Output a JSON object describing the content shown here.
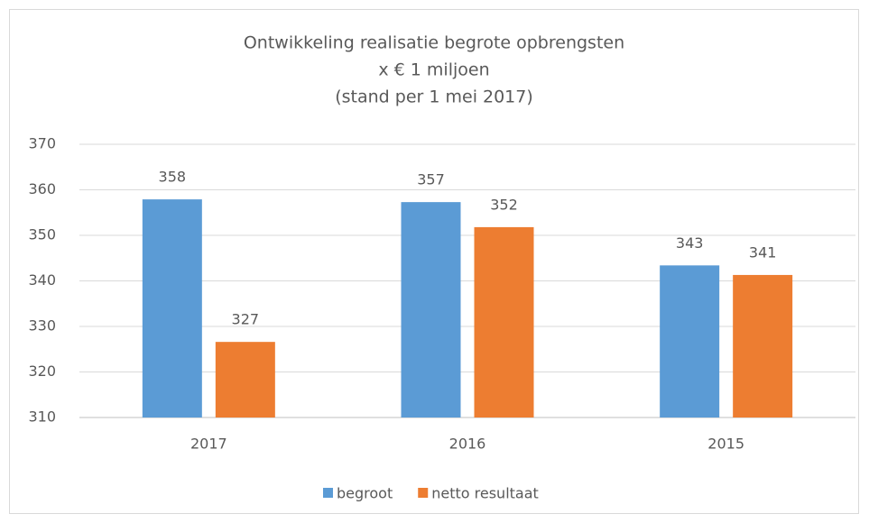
{
  "chart_data": {
    "type": "bar",
    "title": "Ontwikkeling realisatie begrote opbrengsten",
    "subtitle": [
      "x € 1 miljoen",
      "(stand per 1 mei 2017)"
    ],
    "categories": [
      "2017",
      "2016",
      "2015"
    ],
    "series": [
      {
        "name": "begroot",
        "color": "#5b9bd5",
        "values": [
          357.9,
          357.3,
          343.4
        ],
        "value_labels": [
          "358",
          "357",
          "343"
        ]
      },
      {
        "name": "netto resultaat",
        "color": "#ed7d31",
        "values": [
          326.6,
          351.8,
          341.3
        ],
        "value_labels": [
          "327",
          "352",
          "341"
        ]
      }
    ],
    "ylim": [
      310,
      370
    ],
    "yticks": [
      310,
      320,
      330,
      340,
      350,
      360,
      370
    ],
    "grid": true,
    "legend": "bottom"
  }
}
